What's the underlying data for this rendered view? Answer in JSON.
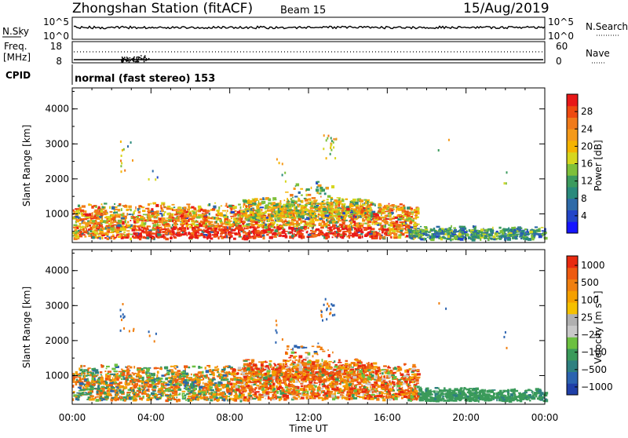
{
  "header": {
    "station": "Zhongshan Station (fitACF)",
    "beam": "Beam 15",
    "date": "15/Aug/2019"
  },
  "strip": {
    "nsky_label": "N.Sky",
    "nsky_ticks": [
      "10^5",
      "10^0"
    ],
    "nsearch_label": "N.Search",
    "nsearch_ticks": [
      "10^5",
      "10^0"
    ],
    "freq_label": "Freq.",
    "freq_unit": "[MHz]",
    "freq_ticks": [
      "18",
      "8"
    ],
    "nave_label": "Nave",
    "nave_ticks": [
      "60",
      "0"
    ],
    "cpid_label": "CPID",
    "cpid_text": "normal (fast stereo) 153"
  },
  "chart_data": [
    {
      "type": "heatmap",
      "ylabel": "Slant Range [km]",
      "xlabel": "Time UT",
      "x_ticks": [
        "00:00",
        "04:00",
        "08:00",
        "12:00",
        "16:00",
        "20:00",
        "00:00"
      ],
      "x_range_hours": [
        0,
        24
      ],
      "y_ticks": [
        1000,
        2000,
        3000,
        4000
      ],
      "y_range_km": [
        180,
        4600
      ],
      "colorbar": {
        "label": "Power [dB]",
        "ticks": [
          4,
          8,
          12,
          16,
          20,
          24,
          28
        ],
        "range": [
          0,
          32
        ],
        "colors": [
          "#1515ff",
          "#2245c8",
          "#2e6aa8",
          "#2a8a7c",
          "#3c9b5e",
          "#7ec03a",
          "#d6d61e",
          "#f5b400",
          "#f59a1a",
          "#f07a1a",
          "#ee4a10",
          "#e81818"
        ]
      }
    },
    {
      "type": "heatmap",
      "ylabel": "Slant Range [km]",
      "xlabel": "Time UT",
      "x_ticks": [
        "00:00",
        "04:00",
        "08:00",
        "12:00",
        "16:00",
        "20:00",
        "00:00"
      ],
      "x_range_hours": [
        0,
        24
      ],
      "y_ticks": [
        1000,
        2000,
        3000,
        4000
      ],
      "y_range_km": [
        180,
        4600
      ],
      "colorbar": {
        "label": "Velocity [m s⁻¹]",
        "ticks": [
          "1000",
          "500",
          "100",
          "25",
          "−25",
          "−100",
          "−500",
          "−1000"
        ],
        "colors": [
          "#1f3fa8",
          "#2b63b0",
          "#2e8080",
          "#3a9a5a",
          "#6cc040",
          "#c8c8c8",
          "#b0b0b0",
          "#f5c000",
          "#f5a000",
          "#f07f10",
          "#ee5a10",
          "#e82a10"
        ]
      }
    }
  ]
}
